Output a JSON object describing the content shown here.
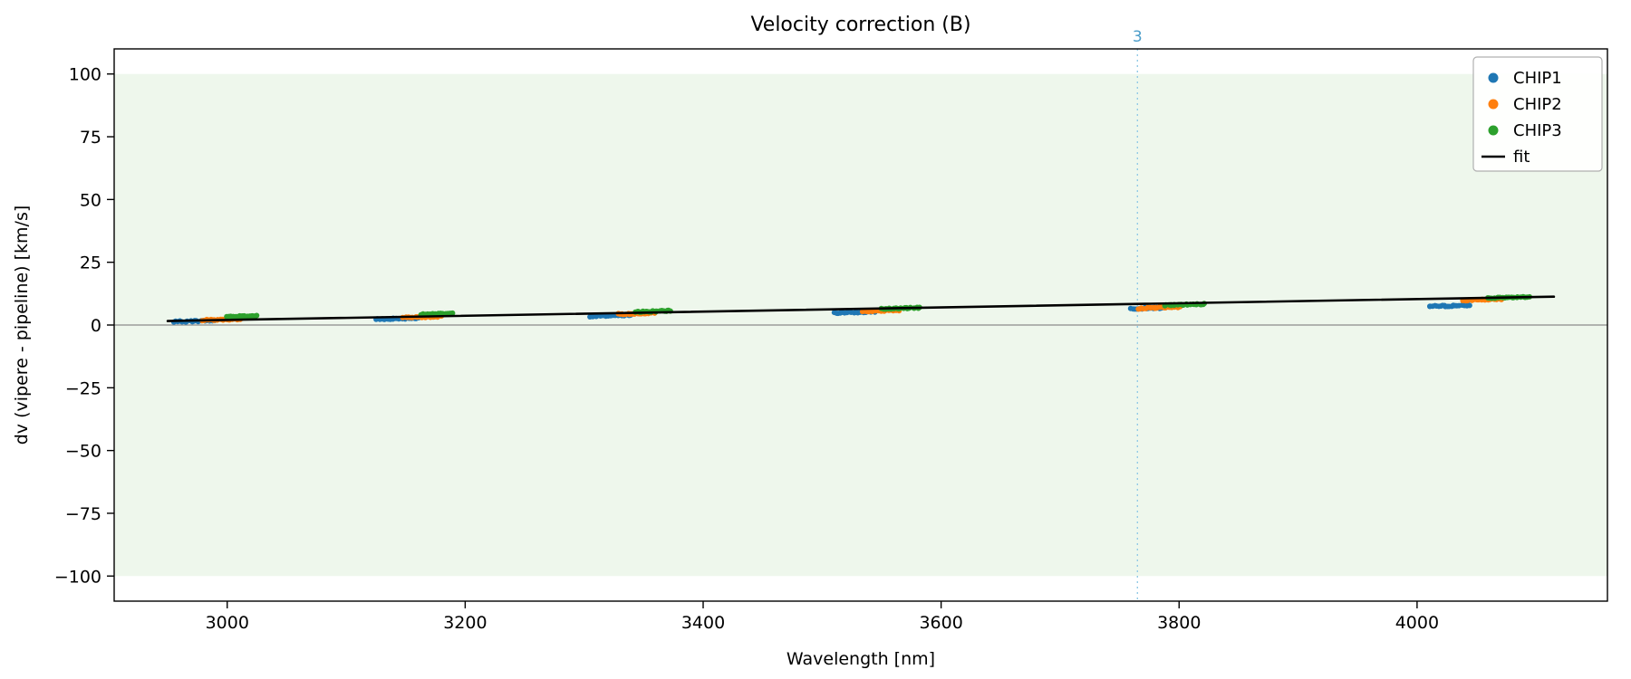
{
  "chart_data": {
    "type": "scatter",
    "title": "Velocity correction (B)",
    "xlabel": "Wavelength [nm]",
    "ylabel": "dv (vipere - pipeline) [km/s]",
    "xlim": [
      2905,
      4160
    ],
    "ylim": [
      -110,
      110
    ],
    "xticks": [
      3000,
      3200,
      3400,
      3600,
      3800,
      4000
    ],
    "yticks": [
      100,
      75,
      50,
      25,
      0,
      -25,
      -50,
      -75,
      -100
    ],
    "grid": false,
    "shaded_band": {
      "ymin": -100,
      "ymax": 100,
      "color": "#eef7ec"
    },
    "zero_line": {
      "y": 0,
      "color": "#8a8a8a"
    },
    "vline": {
      "x": 3765,
      "label": "3",
      "color": "#93cae6",
      "label_color": "#4a9cc9",
      "style": "dotted"
    },
    "series": [
      {
        "name": "CHIP1",
        "color": "#1f77b4",
        "clusters": [
          [
            2955,
            2990,
            1.3,
            1.8
          ],
          [
            3125,
            3160,
            2.3,
            2.8
          ],
          [
            3305,
            3340,
            3.4,
            4.0
          ],
          [
            3510,
            3545,
            4.8,
            5.3
          ],
          [
            3760,
            3788,
            6.5,
            6.9
          ],
          [
            4010,
            4045,
            7.4,
            7.9
          ]
        ]
      },
      {
        "name": "CHIP2",
        "color": "#ff7f0e",
        "clusters": [
          [
            2980,
            3012,
            1.9,
            2.4
          ],
          [
            3148,
            3180,
            2.9,
            3.4
          ],
          [
            3328,
            3360,
            4.3,
            4.9
          ],
          [
            3533,
            3565,
            5.4,
            5.9
          ],
          [
            3766,
            3800,
            6.6,
            7.2
          ],
          [
            4038,
            4072,
            9.8,
            10.4
          ]
        ]
      },
      {
        "name": "CHIP3",
        "color": "#2ca02c",
        "clusters": [
          [
            3000,
            3025,
            3.2,
            3.7
          ],
          [
            3163,
            3190,
            4.2,
            4.7
          ],
          [
            3343,
            3372,
            5.2,
            5.7
          ],
          [
            3550,
            3582,
            6.4,
            6.9
          ],
          [
            3788,
            3822,
            7.8,
            8.4
          ],
          [
            4060,
            4094,
            10.6,
            11.2
          ]
        ]
      }
    ],
    "fit_line": {
      "name": "fit",
      "color": "#000000",
      "x": [
        2950,
        4115
      ],
      "y": [
        1.6,
        11.3
      ]
    },
    "legend": {
      "position": "upper right",
      "entries": [
        "CHIP1",
        "CHIP2",
        "CHIP3",
        "fit"
      ]
    }
  }
}
